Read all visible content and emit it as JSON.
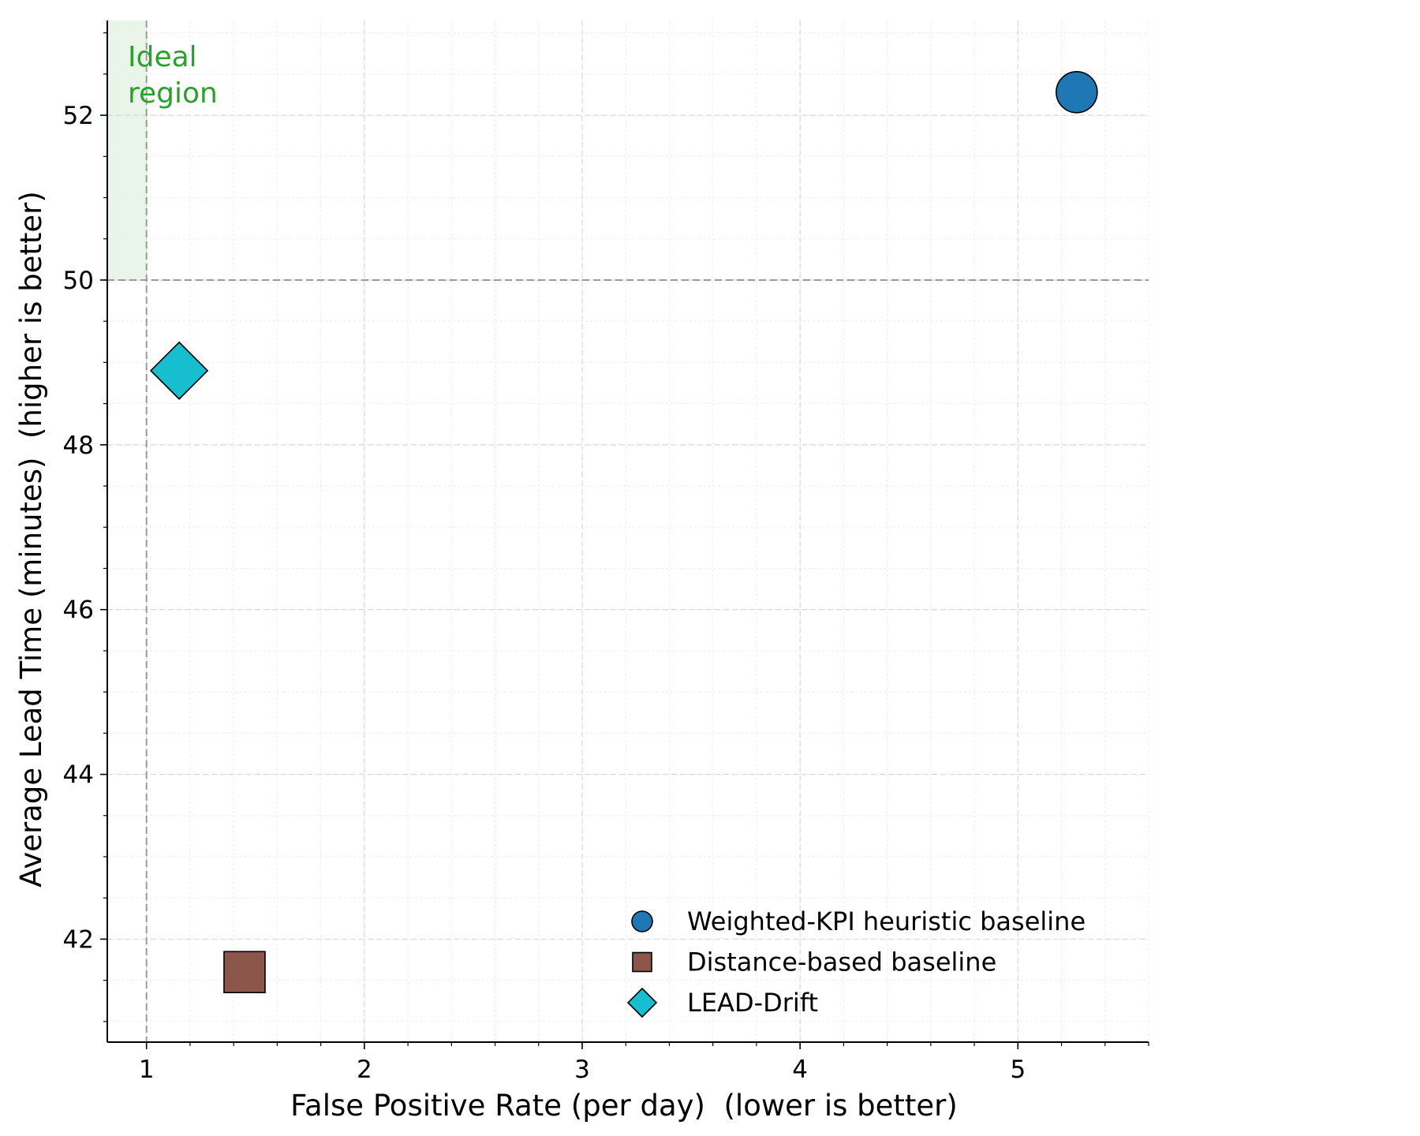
{
  "chart_data": {
    "type": "scatter",
    "title": "",
    "xlabel": "False Positive Rate (per day)  (lower is better)",
    "ylabel": "Average Lead Time (minutes)  (higher is better)",
    "xlim": [
      0.82,
      5.6
    ],
    "ylim": [
      40.75,
      53.15
    ],
    "x_ticks": [
      1,
      2,
      3,
      4,
      5
    ],
    "x_tick_labels": [
      "1",
      "2",
      "3",
      "4",
      "5"
    ],
    "y_ticks": [
      42,
      44,
      46,
      48,
      50,
      52
    ],
    "y_tick_labels": [
      "42",
      "44",
      "46",
      "48",
      "50",
      "52"
    ],
    "x_minor_step": 0.2,
    "y_minor_step": 0.5,
    "grid": true,
    "reference_lines": {
      "x": 1,
      "y": 50
    },
    "ideal_region": {
      "label_line1": "Ideal",
      "label_line2": "region",
      "x_range": [
        0.82,
        1
      ],
      "y_range": [
        50,
        53.15
      ],
      "color": "#2ca02c"
    },
    "legend_position": "lower-right",
    "series": [
      {
        "name": "Weighted-KPI heuristic baseline",
        "marker": "circle",
        "color": "#1f77b4",
        "x": 5.27,
        "y": 52.28
      },
      {
        "name": "Distance-based baseline",
        "marker": "square",
        "color": "#8c564b",
        "x": 1.45,
        "y": 41.6
      },
      {
        "name": "LEAD-Drift",
        "marker": "diamond",
        "color": "#17becf",
        "x": 1.15,
        "y": 48.9
      }
    ]
  }
}
